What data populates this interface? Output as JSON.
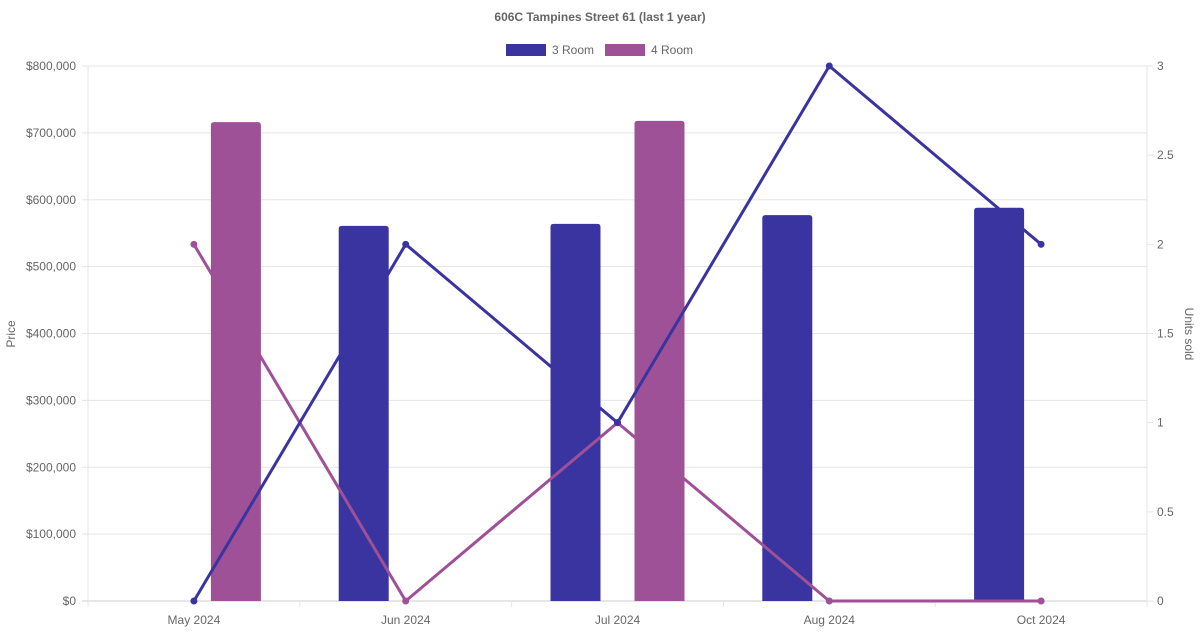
{
  "chart_data": {
    "type": "bar",
    "title": "606C Tampines Street 61 (last 1 year)",
    "categories": [
      "May 2024",
      "Jun 2024",
      "Jul 2024",
      "Aug 2024",
      "Oct 2024"
    ],
    "ylabel": "Price",
    "y2label": "Units sold",
    "ylim": [
      0,
      800000
    ],
    "y2lim": [
      0,
      3
    ],
    "yticks": [
      "$0",
      "$100,000",
      "$200,000",
      "$300,000",
      "$400,000",
      "$500,000",
      "$600,000",
      "$700,000",
      "$800,000"
    ],
    "y2ticks": [
      "0",
      "0.5",
      "1",
      "1.5",
      "2",
      "2.5",
      "3"
    ],
    "legend_position": "top",
    "grid": true,
    "series": [
      {
        "name": "3 Room",
        "color": "#3a34a0",
        "price": [
          null,
          561000,
          564000,
          577000,
          588000
        ],
        "units": [
          0,
          2,
          1,
          3,
          2
        ]
      },
      {
        "name": "4 Room",
        "color": "#9e5196",
        "price": [
          716000,
          null,
          718000,
          null,
          null
        ],
        "units": [
          2,
          0,
          1,
          0,
          0
        ]
      }
    ]
  }
}
